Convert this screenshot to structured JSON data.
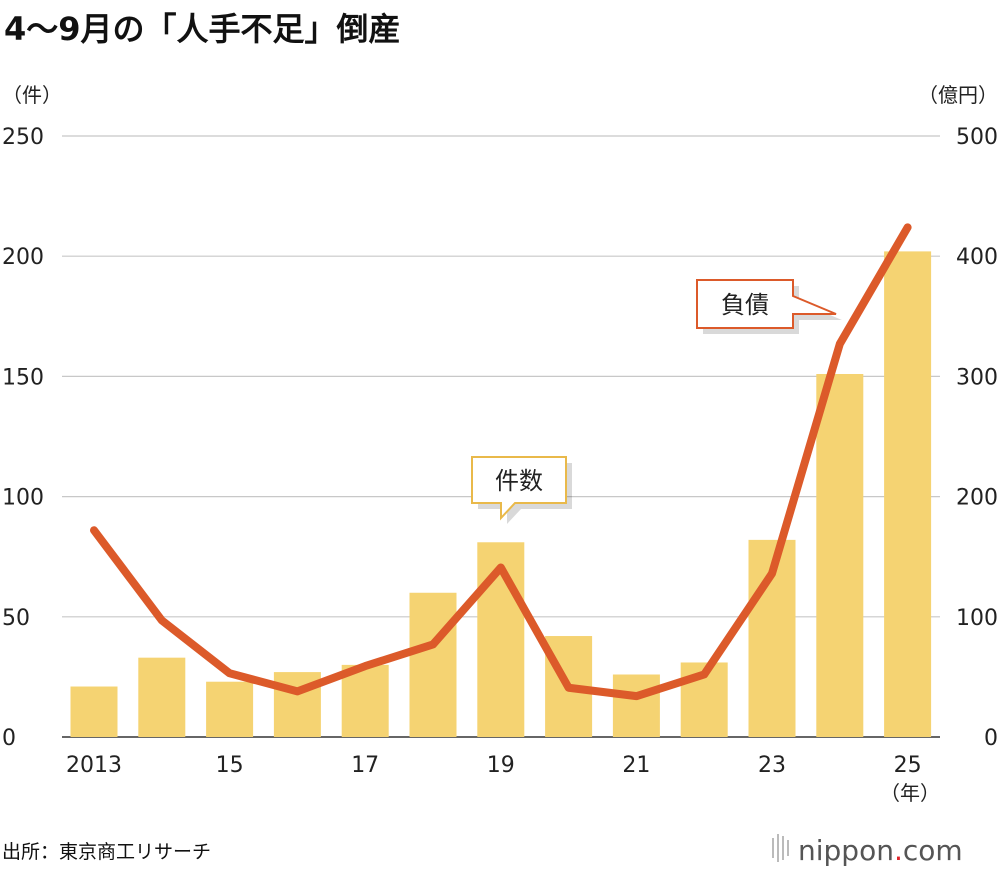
{
  "chart_data": {
    "type": "bar+line",
    "title": "4〜9月の「人手不足」倒産",
    "left_unit": "（件）",
    "right_unit": "（億円）",
    "x_unit": "（年）",
    "source": "出所：東京商工リサーチ",
    "logo": "nippon.com",
    "x": [
      2013,
      2014,
      2015,
      2016,
      2017,
      2018,
      2019,
      2020,
      2021,
      2022,
      2023,
      2024,
      2025
    ],
    "x_tick_labels": [
      "2013",
      "",
      "15",
      "",
      "17",
      "",
      "19",
      "",
      "21",
      "",
      "23",
      "",
      "25"
    ],
    "left_axis": {
      "ylim": [
        0,
        250
      ],
      "ticks": [
        "0",
        "50",
        "100",
        "150",
        "200",
        "250"
      ]
    },
    "right_axis": {
      "ylim": [
        0,
        500
      ],
      "ticks": [
        "0",
        "100",
        "200",
        "300",
        "400",
        "500"
      ]
    },
    "grid": true,
    "series": [
      {
        "name": "件数",
        "type": "bar",
        "axis": "left",
        "color": "#f5d372",
        "values": [
          21,
          33,
          23,
          27,
          30,
          60,
          81,
          42,
          26,
          31,
          82,
          151,
          202
        ]
      },
      {
        "name": "負債",
        "type": "line",
        "axis": "right",
        "color": "#dc5a2a",
        "values": [
          172,
          97,
          53,
          38,
          59,
          77,
          141,
          41,
          34,
          52,
          136,
          327,
          424
        ]
      }
    ]
  }
}
